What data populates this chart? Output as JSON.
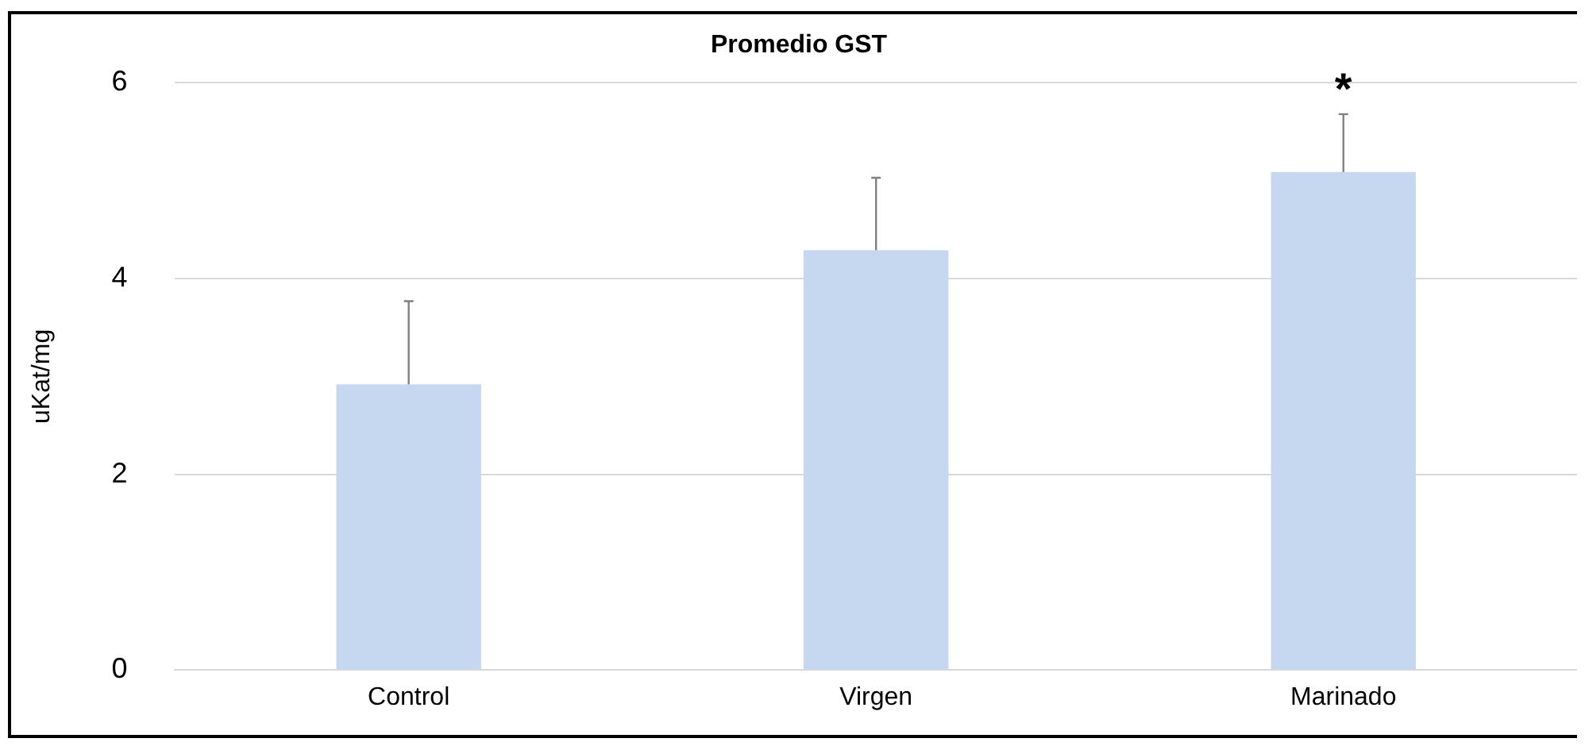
{
  "chart_data": {
    "type": "bar",
    "title": "Promedio GST",
    "ylabel": "uKat/mg",
    "categories": [
      "Control",
      "Virgen",
      "Marinado"
    ],
    "values": [
      2.92,
      4.29,
      5.09
    ],
    "errors": [
      [
        2.92,
        3.77
      ],
      [
        4.29,
        5.03
      ],
      [
        5.09,
        5.68
      ]
    ],
    "color": "#c6d8ef",
    "ylim": [
      0,
      6
    ],
    "yticks": [
      0,
      2,
      4,
      6
    ],
    "grid": "y",
    "annotations": [
      "*"
    ]
  }
}
